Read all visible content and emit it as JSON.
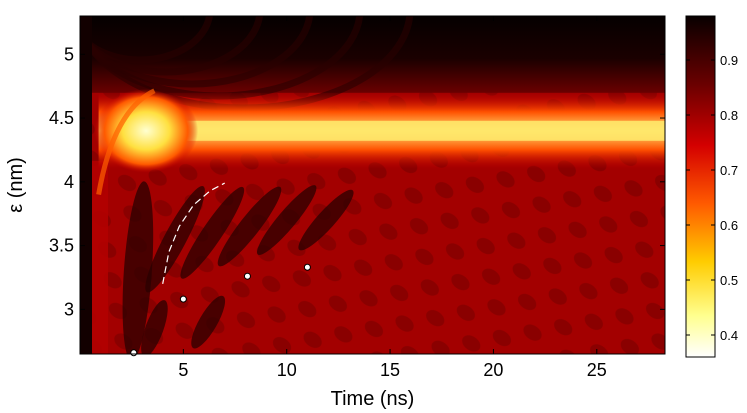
{
  "chart_data": {
    "type": "heatmap",
    "title": "",
    "xlabel": "Time (ns)",
    "ylabel": "ε (nm)",
    "xlim": [
      0,
      28.3
    ],
    "ylim": [
      2.65,
      5.3
    ],
    "xticks": [
      5,
      10,
      15,
      20,
      25
    ],
    "xtick_labels": [
      "5",
      "10",
      "15",
      "20",
      "25"
    ],
    "yticks": [
      3,
      3.5,
      4,
      4.5,
      5
    ],
    "ytick_labels": [
      "3",
      "3.5",
      "4",
      "4.5",
      "5"
    ],
    "colormap": "hot (reversed)",
    "colorbar": {
      "range": [
        0.36,
        0.98
      ],
      "ticks": [
        0.4,
        0.5,
        0.6,
        0.7,
        0.8,
        0.9
      ],
      "tick_labels": [
        "0.4",
        "0.5",
        "0.6",
        "0.7",
        "0.8",
        "0.9"
      ]
    },
    "dominant_band": {
      "epsilon_nm": 4.4,
      "value_min": 0.38
    },
    "markers": [
      {
        "x": 2.6,
        "y": 2.66
      },
      {
        "x": 5.0,
        "y": 3.08
      },
      {
        "x": 8.1,
        "y": 3.26
      },
      {
        "x": 11.0,
        "y": 3.33
      }
    ],
    "dashed_curve": [
      {
        "x": 4.0,
        "y": 3.2
      },
      {
        "x": 4.3,
        "y": 3.45
      },
      {
        "x": 4.8,
        "y": 3.65
      },
      {
        "x": 5.5,
        "y": 3.82
      },
      {
        "x": 6.3,
        "y": 3.93
      },
      {
        "x": 7.0,
        "y": 3.99
      }
    ]
  }
}
